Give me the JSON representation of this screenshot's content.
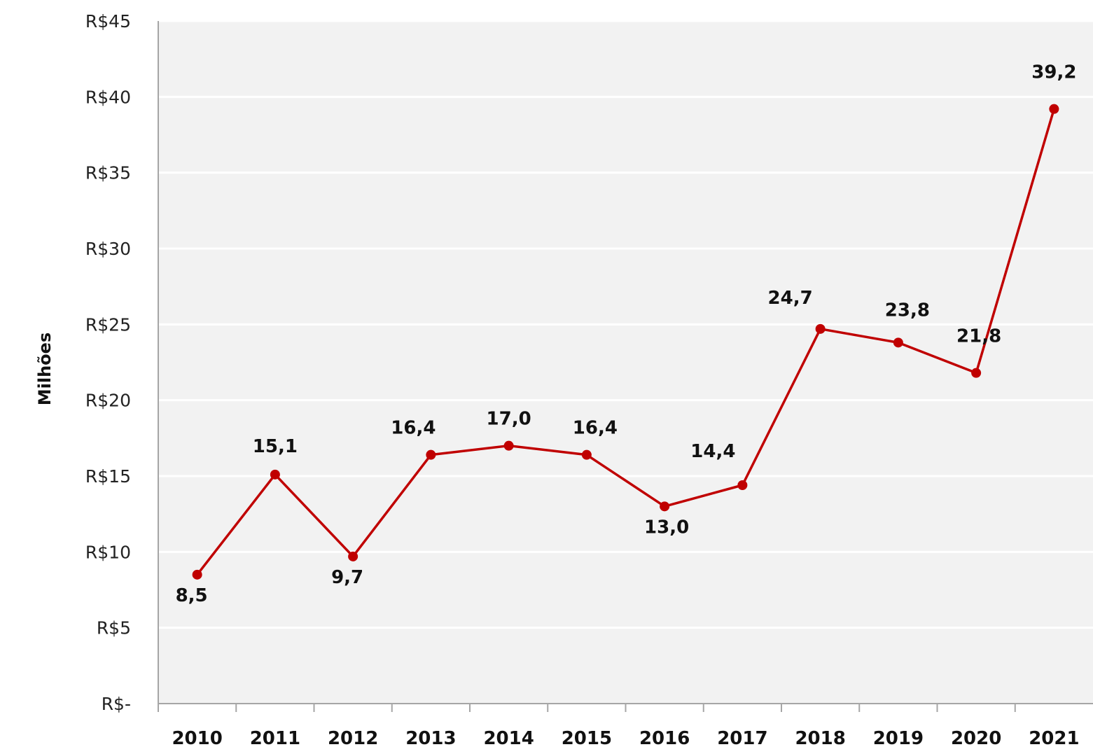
{
  "chart_data": {
    "type": "line",
    "title": "",
    "xlabel": "",
    "ylabel": "Milhões",
    "categories": [
      "2010",
      "2011",
      "2012",
      "2013",
      "2014",
      "2015",
      "2016",
      "2017",
      "2018",
      "2019",
      "2020",
      "2021"
    ],
    "series": [
      {
        "values": [
          8.5,
          15.1,
          9.7,
          16.4,
          17.0,
          16.4,
          13.0,
          14.4,
          24.7,
          23.8,
          21.8,
          39.2
        ],
        "data_labels": [
          "8,5",
          "15,1",
          "9,7",
          "16,4",
          "17,0",
          "16,4",
          "13,0",
          "14,4",
          "24,7",
          "23,8",
          "21,8",
          "39,2"
        ],
        "color": "#c00000"
      }
    ],
    "ylim": [
      0,
      45
    ],
    "y_ticks": [
      0,
      5,
      10,
      15,
      20,
      25,
      30,
      35,
      40,
      45
    ],
    "y_tick_labels": [
      "R$-",
      "R$5",
      "R$10",
      "R$15",
      "R$20",
      "R$25",
      "R$30",
      "R$35",
      "R$40",
      "R$45"
    ],
    "grid": true,
    "legend": "none",
    "plot_background": "#f2f2f2",
    "gridline_color": "#ffffff",
    "axis_color": "#a6a6a6"
  }
}
